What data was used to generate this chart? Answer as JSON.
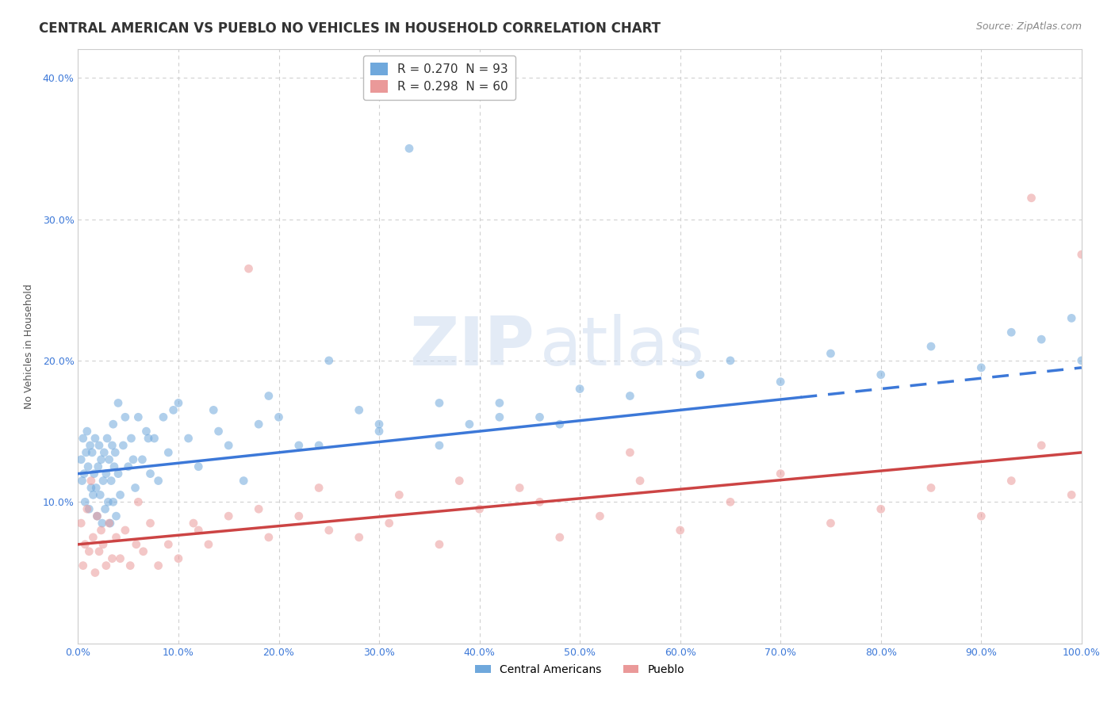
{
  "title": "CENTRAL AMERICAN VS PUEBLO NO VEHICLES IN HOUSEHOLD CORRELATION CHART",
  "source": "Source: ZipAtlas.com",
  "ylabel": "No Vehicles in Household",
  "xlim": [
    0,
    100
  ],
  "ylim": [
    0,
    42
  ],
  "xticks": [
    0,
    10,
    20,
    30,
    40,
    50,
    60,
    70,
    80,
    90,
    100
  ],
  "yticks": [
    0,
    10,
    20,
    30,
    40
  ],
  "xtick_labels": [
    "0.0%",
    "10.0%",
    "20.0%",
    "30.0%",
    "40.0%",
    "50.0%",
    "60.0%",
    "70.0%",
    "80.0%",
    "90.0%",
    "100.0%"
  ],
  "ytick_labels": [
    "",
    "10.0%",
    "20.0%",
    "30.0%",
    "40.0%"
  ],
  "legend_labels": [
    "R = 0.270  N = 93",
    "R = 0.298  N = 60"
  ],
  "legend_bottom_labels": [
    "Central Americans",
    "Pueblo"
  ],
  "blue_color": "#6fa8dc",
  "pink_color": "#ea9999",
  "blue_line_color": "#3c78d8",
  "pink_line_color": "#cc4444",
  "watermark_zip": "ZIP",
  "watermark_atlas": "atlas",
  "blue_trend_x0": 0,
  "blue_trend_y0": 12.0,
  "blue_trend_x1": 100,
  "blue_trend_y1": 19.5,
  "blue_dashed_start_x": 72,
  "pink_trend_x0": 0,
  "pink_trend_y0": 7.0,
  "pink_trend_x1": 100,
  "pink_trend_y1": 13.5,
  "background_color": "#ffffff",
  "grid_color": "#d0d0d0",
  "title_fontsize": 12,
  "axis_fontsize": 9,
  "tick_fontsize": 9,
  "dot_size": 60,
  "dot_alpha": 0.55,
  "blue_x": [
    0.3,
    0.4,
    0.5,
    0.6,
    0.7,
    0.8,
    0.9,
    1.0,
    1.1,
    1.2,
    1.3,
    1.4,
    1.5,
    1.6,
    1.7,
    1.8,
    1.9,
    2.0,
    2.1,
    2.2,
    2.3,
    2.4,
    2.5,
    2.6,
    2.7,
    2.8,
    2.9,
    3.0,
    3.1,
    3.2,
    3.3,
    3.4,
    3.5,
    3.6,
    3.7,
    3.8,
    4.0,
    4.2,
    4.5,
    4.7,
    5.0,
    5.3,
    5.7,
    6.0,
    6.4,
    6.8,
    7.2,
    7.6,
    8.0,
    8.5,
    9.0,
    10.0,
    11.0,
    12.0,
    13.5,
    15.0,
    16.5,
    18.0,
    20.0,
    22.0,
    25.0,
    28.0,
    30.0,
    33.0,
    36.0,
    39.0,
    42.0,
    46.0,
    50.0,
    55.0,
    62.0,
    65.0,
    70.0,
    75.0,
    80.0,
    85.0,
    90.0,
    93.0,
    96.0,
    99.0,
    100.0,
    3.5,
    4.0,
    5.5,
    7.0,
    9.5,
    14.0,
    19.0,
    24.0,
    30.0,
    36.0,
    42.0,
    48.0
  ],
  "blue_y": [
    13.0,
    11.5,
    14.5,
    12.0,
    10.0,
    13.5,
    15.0,
    12.5,
    9.5,
    14.0,
    11.0,
    13.5,
    10.5,
    12.0,
    14.5,
    11.0,
    9.0,
    12.5,
    14.0,
    10.5,
    13.0,
    8.5,
    11.5,
    13.5,
    9.5,
    12.0,
    14.5,
    10.0,
    13.0,
    8.5,
    11.5,
    14.0,
    10.0,
    12.5,
    13.5,
    9.0,
    12.0,
    10.5,
    14.0,
    16.0,
    12.5,
    14.5,
    11.0,
    16.0,
    13.0,
    15.0,
    12.0,
    14.5,
    11.5,
    16.0,
    13.5,
    17.0,
    14.5,
    12.5,
    16.5,
    14.0,
    11.5,
    15.5,
    16.0,
    14.0,
    20.0,
    16.5,
    15.0,
    35.0,
    17.0,
    15.5,
    17.0,
    16.0,
    18.0,
    17.5,
    19.0,
    20.0,
    18.5,
    20.5,
    19.0,
    21.0,
    19.5,
    22.0,
    21.5,
    23.0,
    20.0,
    15.5,
    17.0,
    13.0,
    14.5,
    16.5,
    15.0,
    17.5,
    14.0,
    15.5,
    14.0,
    16.0,
    15.5
  ],
  "pink_x": [
    0.3,
    0.5,
    0.7,
    0.9,
    1.1,
    1.3,
    1.5,
    1.7,
    1.9,
    2.1,
    2.3,
    2.5,
    2.8,
    3.1,
    3.4,
    3.8,
    4.2,
    4.7,
    5.2,
    5.8,
    6.5,
    7.2,
    8.0,
    9.0,
    10.0,
    11.5,
    13.0,
    15.0,
    17.0,
    19.0,
    22.0,
    25.0,
    28.0,
    32.0,
    36.0,
    40.0,
    44.0,
    48.0,
    52.0,
    56.0,
    60.0,
    65.0,
    70.0,
    75.0,
    80.0,
    85.0,
    90.0,
    93.0,
    96.0,
    99.0,
    100.0,
    6.0,
    12.0,
    18.0,
    24.0,
    31.0,
    38.0,
    46.0,
    55.0,
    95.0
  ],
  "pink_y": [
    8.5,
    5.5,
    7.0,
    9.5,
    6.5,
    11.5,
    7.5,
    5.0,
    9.0,
    6.5,
    8.0,
    7.0,
    5.5,
    8.5,
    6.0,
    7.5,
    6.0,
    8.0,
    5.5,
    7.0,
    6.5,
    8.5,
    5.5,
    7.0,
    6.0,
    8.5,
    7.0,
    9.0,
    26.5,
    7.5,
    9.0,
    8.0,
    7.5,
    10.5,
    7.0,
    9.5,
    11.0,
    7.5,
    9.0,
    11.5,
    8.0,
    10.0,
    12.0,
    8.5,
    9.5,
    11.0,
    9.0,
    11.5,
    14.0,
    10.5,
    27.5,
    10.0,
    8.0,
    9.5,
    11.0,
    8.5,
    11.5,
    10.0,
    13.5,
    31.5
  ]
}
